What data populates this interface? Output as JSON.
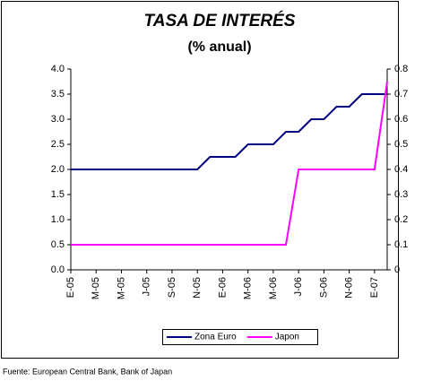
{
  "chart_data": {
    "type": "line",
    "title": "TASA DE INTERÉS",
    "subtitle": "(% anual)",
    "source": "Fuente: European Central Bank, Bank of Japan",
    "categories": [
      "E-05",
      null,
      "M-05",
      null,
      "M-05",
      null,
      "J-05",
      null,
      "S-05",
      null,
      "N-05",
      null,
      "E-06",
      null,
      "M-06",
      null,
      "M-06",
      null,
      "J-06",
      null,
      "S-06",
      null,
      "N-06",
      null,
      "E-07",
      null
    ],
    "series": [
      {
        "name": "Zona Euro",
        "color": "#000080",
        "values": [
          2.0,
          2.0,
          2.0,
          2.0,
          2.0,
          2.0,
          2.0,
          2.0,
          2.0,
          2.0,
          2.0,
          2.25,
          2.25,
          2.25,
          2.5,
          2.5,
          2.5,
          2.75,
          2.75,
          3.0,
          3.0,
          3.25,
          3.25,
          3.5,
          3.5,
          3.5
        ]
      },
      {
        "name": "Japon",
        "color": "#ff00ff",
        "axis": "y2",
        "values": [
          0.1,
          0.1,
          0.1,
          0.1,
          0.1,
          0.1,
          0.1,
          0.1,
          0.1,
          0.1,
          0.1,
          0.1,
          0.1,
          0.1,
          0.1,
          0.1,
          0.1,
          0.1,
          0.4,
          0.4,
          0.4,
          0.4,
          0.4,
          0.4,
          0.4,
          0.75
        ]
      }
    ],
    "ylim": [
      0,
      4
    ],
    "yticks": [
      {
        "value": 0,
        "label": "0.0"
      },
      0.5,
      {
        "value": 1,
        "label": "1.0"
      },
      1.5,
      {
        "value": 2,
        "label": "2.0"
      },
      2.5,
      {
        "value": 3,
        "label": "3.0"
      },
      3.5,
      {
        "value": 4,
        "label": "4.0"
      }
    ],
    "y2lim": [
      0,
      0.8
    ],
    "y2ticks": [
      0,
      0.1,
      0.2,
      0.3,
      0.4,
      0.5,
      0.6,
      0.7,
      0.8
    ],
    "grid": false,
    "legend": "bottom"
  }
}
